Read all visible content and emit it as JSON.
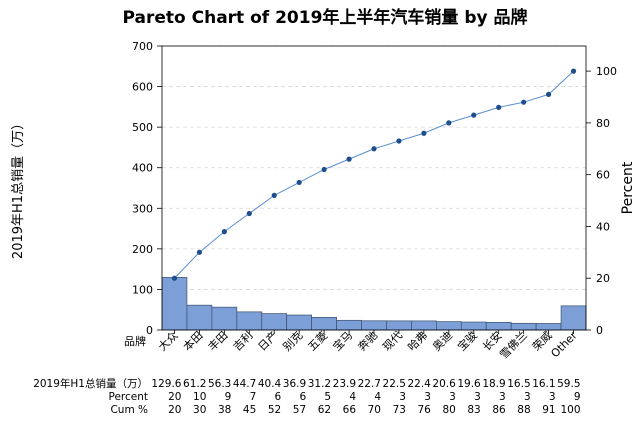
{
  "chart_data": {
    "type": "pareto",
    "title": "Pareto Chart of 2019年上半年汽车销量 by 品牌",
    "y_left_label": "2019年H1总销量（万）",
    "y_right_label": "Percent",
    "category_axis_label": "品牌",
    "y_left_ticks": [
      0,
      100,
      200,
      300,
      400,
      500,
      600,
      700
    ],
    "y_left_lim": [
      0,
      700
    ],
    "y_right_ticks": [
      0,
      20,
      40,
      60,
      80,
      100
    ],
    "y_right_lim": [
      0,
      109.7
    ],
    "grid": "horizontal dashed",
    "categories": [
      "大众",
      "本田",
      "丰田",
      "吉利",
      "日产",
      "别克",
      "五菱",
      "宝马",
      "奔驰",
      "现代",
      "哈弗",
      "奥迪",
      "宝骏",
      "长安",
      "雪佛兰",
      "荣威",
      "Other"
    ],
    "series": [
      {
        "name": "2019年H1总销量（万）",
        "type": "bar",
        "values": [
          129.6,
          61.2,
          56.3,
          44.7,
          40.4,
          36.9,
          31.2,
          23.9,
          22.7,
          22.5,
          22.4,
          20.6,
          19.6,
          18.9,
          16.5,
          16.1,
          59.5
        ]
      },
      {
        "name": "Cum %",
        "type": "line",
        "values": [
          20,
          30,
          38,
          45,
          52,
          57,
          62,
          66,
          70,
          73,
          76,
          80,
          83,
          86,
          88,
          91,
          100
        ]
      }
    ],
    "table": {
      "row_labels": [
        "2019年H1总销量（万）",
        "Percent",
        "Cum %"
      ],
      "counts": [
        "129.6",
        "61.2",
        "56.3",
        "44.7",
        "40.4",
        "36.9",
        "31.2",
        "23.9",
        "22.7",
        "22.5",
        "22.4",
        "20.6",
        "19.6",
        "18.9",
        "16.5",
        "16.1",
        "59.5"
      ],
      "percent": [
        "20",
        "10",
        "9",
        "7",
        "6",
        "6",
        "5",
        "4",
        "4",
        "3",
        "3",
        "3",
        "3",
        "3",
        "3",
        "3",
        "9"
      ],
      "cum": [
        "20",
        "30",
        "38",
        "45",
        "52",
        "57",
        "62",
        "66",
        "70",
        "73",
        "76",
        "80",
        "83",
        "86",
        "88",
        "91",
        "100"
      ]
    },
    "colors": {
      "bar_fill": "#7b9fd6",
      "bar_stroke": "#3d4f6e",
      "line": "#5b8fd0",
      "marker": "#1f4e8c",
      "grid": "#d8d8d8"
    }
  }
}
